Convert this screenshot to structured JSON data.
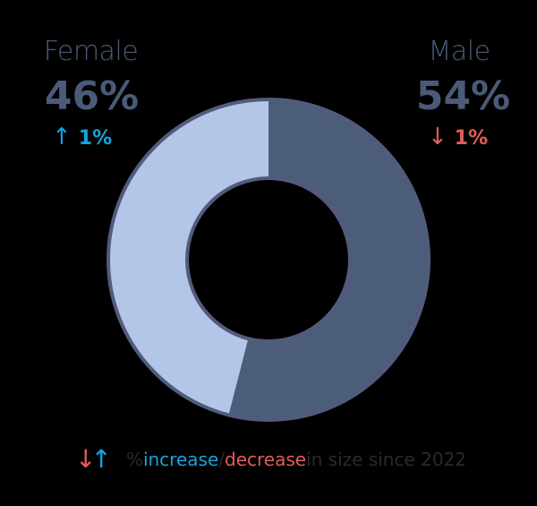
{
  "chart_data": {
    "type": "pie",
    "variant": "donut",
    "categories": [
      "Male",
      "Female"
    ],
    "values": [
      54,
      46
    ],
    "colors": {
      "Male": "#4b5d79",
      "Female": "#b3c6e8",
      "outline": "#525b7c"
    },
    "changes": [
      {
        "category": "Female",
        "direction": "up",
        "value": "1%"
      },
      {
        "category": "Male",
        "direction": "down",
        "value": "1%"
      }
    ],
    "legend": "% increase/decrease in size since 2022"
  },
  "female": {
    "label": "Female",
    "pct": "46%",
    "arrow": "↑",
    "change": "1%"
  },
  "male": {
    "label": "Male",
    "pct": "54%",
    "arrow": "↓",
    "change": "1%"
  },
  "legend": {
    "arrows_down": "↓",
    "arrows_up": "↑",
    "prefix": "% ",
    "increase": "increase",
    "slash": "/",
    "decrease": "decrease",
    "suffix": " in size since 2022"
  }
}
